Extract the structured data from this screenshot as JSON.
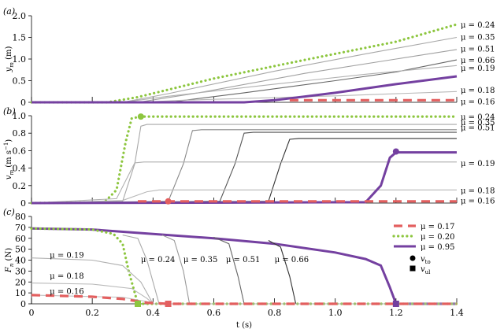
{
  "chart_data": [
    {
      "id": "a",
      "panel_label": "(a)",
      "type": "line",
      "ylabel_parts": [
        "y",
        "m",
        " (m)"
      ],
      "ylim": [
        0,
        2.0
      ],
      "yticks": [
        0,
        0.5,
        1.0,
        1.5,
        2.0
      ],
      "ytick_labels": [
        "0",
        "0.5",
        "1.0",
        "1.5",
        "2.0"
      ],
      "xlim": [
        0,
        1.4
      ],
      "xticks": [
        0,
        0.2,
        0.4,
        0.6,
        0.8,
        1.0,
        1.2,
        1.4
      ],
      "xtick_labels": [],
      "series": [
        {
          "name": "μ = 0.24",
          "style": "dotted",
          "color": "#8dc63f",
          "points": [
            [
              0,
              0
            ],
            [
              0.25,
              0
            ],
            [
              0.35,
              0.12
            ],
            [
              0.6,
              0.55
            ],
            [
              0.9,
              0.98
            ],
            [
              1.2,
              1.4
            ],
            [
              1.4,
              1.8
            ]
          ]
        },
        {
          "name": "μ = 0.35",
          "style": "thin",
          "color": "#a8a8a8",
          "points": [
            [
              0,
              0
            ],
            [
              0.3,
              0
            ],
            [
              0.45,
              0.2
            ],
            [
              0.8,
              0.72
            ],
            [
              1.1,
              1.12
            ],
            [
              1.4,
              1.5
            ]
          ]
        },
        {
          "name": "μ = 0.51",
          "style": "thin",
          "color": "#a0a0a0",
          "points": [
            [
              0,
              0
            ],
            [
              0.35,
              0
            ],
            [
              0.55,
              0.22
            ],
            [
              0.9,
              0.67
            ],
            [
              1.2,
              1.0
            ],
            [
              1.4,
              1.22
            ]
          ]
        },
        {
          "name": "μ = 0.66",
          "style": "thin",
          "color": "#666666",
          "points": [
            [
              0,
              0
            ],
            [
              0.45,
              0
            ],
            [
              0.7,
              0.22
            ],
            [
              1.0,
              0.5
            ],
            [
              1.2,
              0.7
            ],
            [
              1.4,
              0.98
            ]
          ]
        },
        {
          "name": "μ = 0.19",
          "style": "thin",
          "color": "#b0b0b0",
          "points": [
            [
              0,
              0
            ],
            [
              0.3,
              0
            ],
            [
              0.45,
              0.14
            ],
            [
              0.8,
              0.42
            ],
            [
              1.1,
              0.65
            ],
            [
              1.4,
              0.85
            ]
          ]
        },
        {
          "name": "μ = 0.18",
          "style": "thin",
          "color": "#b8b8b8",
          "points": [
            [
              0,
              0
            ],
            [
              0.35,
              0
            ],
            [
              0.5,
              0.05
            ],
            [
              1.0,
              0.15
            ],
            [
              1.4,
              0.25
            ]
          ]
        },
        {
          "name": "μ = 0.16",
          "style": "thick",
          "color": "#7440a0",
          "points": [
            [
              0,
              0
            ],
            [
              0.7,
              0
            ],
            [
              0.8,
              0.05
            ],
            [
              1.0,
              0.22
            ],
            [
              1.2,
              0.42
            ],
            [
              1.4,
              0.6
            ]
          ]
        },
        {
          "name": "",
          "style": "dashed",
          "color": "#e35f5f",
          "points": [
            [
              0.85,
              0.05
            ],
            [
              1.4,
              0.05
            ]
          ]
        }
      ],
      "right_labels": [
        {
          "text": "μ = 0.24",
          "y": 1.8
        },
        {
          "text": "μ = 0.35",
          "y": 1.52
        },
        {
          "text": "μ = 0.51",
          "y": 1.25
        },
        {
          "text": "μ = 0.66",
          "y": 0.98
        },
        {
          "text": "μ = 0.19",
          "y": 0.8
        },
        {
          "text": "μ = 0.18",
          "y": 0.29
        },
        {
          "text": "μ = 0.16",
          "y": 0.03
        }
      ]
    },
    {
      "id": "b",
      "panel_label": "(b)",
      "type": "line",
      "ylabel_parts": [
        "v",
        "m",
        " (m s",
        "−1",
        ")"
      ],
      "ylim": [
        0,
        1.0
      ],
      "yticks": [
        0,
        0.2,
        0.4,
        0.6,
        0.8,
        1.0
      ],
      "ytick_labels": [
        "0",
        "0.2",
        "0.4",
        "0.6",
        "0.8",
        "1.0"
      ],
      "xlim": [
        0,
        1.4
      ],
      "xticks": [
        0,
        0.2,
        0.4,
        0.6,
        0.8,
        1.0,
        1.2,
        1.4
      ],
      "xtick_labels": [],
      "series": [
        {
          "name": "μ = 0.24",
          "style": "dotted",
          "color": "#8dc63f",
          "points": [
            [
              0,
              0
            ],
            [
              0.24,
              0.01
            ],
            [
              0.28,
              0.15
            ],
            [
              0.31,
              0.7
            ],
            [
              0.33,
              0.97
            ],
            [
              0.36,
              0.99
            ],
            [
              1.4,
              0.99
            ]
          ]
        },
        {
          "name": "μ = 0.35",
          "style": "thin",
          "color": "#a8a8a8",
          "points": [
            [
              0,
              0
            ],
            [
              0.3,
              0.02
            ],
            [
              0.34,
              0.45
            ],
            [
              0.36,
              0.88
            ],
            [
              0.38,
              0.9
            ],
            [
              1.4,
              0.9
            ]
          ]
        },
        {
          "name": "μ = 0.51",
          "style": "thin",
          "color": "#888888",
          "points": [
            [
              0,
              0
            ],
            [
              0.45,
              0.02
            ],
            [
              0.5,
              0.45
            ],
            [
              0.53,
              0.83
            ],
            [
              0.56,
              0.84
            ],
            [
              1.4,
              0.84
            ]
          ]
        },
        {
          "name": "μ = 0.66",
          "style": "thin",
          "color": "#555555",
          "points": [
            [
              0,
              0
            ],
            [
              0.62,
              0.02
            ],
            [
              0.67,
              0.45
            ],
            [
              0.7,
              0.8
            ],
            [
              0.73,
              0.81
            ],
            [
              1.4,
              0.81
            ]
          ]
        },
        {
          "name": "μ = 0.66",
          "style": "thin",
          "color": "#333333",
          "points": [
            [
              0,
              0
            ],
            [
              0.78,
              0.02
            ],
            [
              0.82,
              0.45
            ],
            [
              0.85,
              0.73
            ],
            [
              0.88,
              0.74
            ],
            [
              1.4,
              0.74
            ]
          ]
        },
        {
          "name": "μ = 0.19",
          "style": "thin",
          "color": "#b0b0b0",
          "points": [
            [
              0,
              0
            ],
            [
              0.28,
              0.05
            ],
            [
              0.34,
              0.46
            ],
            [
              0.37,
              0.47
            ],
            [
              1.4,
              0.47
            ]
          ]
        },
        {
          "name": "μ = 0.18",
          "style": "thin",
          "color": "#b8b8b8",
          "points": [
            [
              0,
              0
            ],
            [
              0.3,
              0.03
            ],
            [
              0.38,
              0.13
            ],
            [
              0.42,
              0.15
            ],
            [
              1.4,
              0.15
            ]
          ]
        },
        {
          "name": "μ = 0.16",
          "style": "thick",
          "color": "#7440a0",
          "points": [
            [
              0,
              0
            ],
            [
              1.1,
              0.01
            ],
            [
              1.15,
              0.2
            ],
            [
              1.18,
              0.52
            ],
            [
              1.2,
              0.58
            ],
            [
              1.4,
              0.58
            ]
          ]
        },
        {
          "name": "",
          "style": "dashed",
          "color": "#e35f5f",
          "points": [
            [
              0.35,
              0.02
            ],
            [
              1.4,
              0.02
            ]
          ]
        }
      ],
      "markers": [
        {
          "shape": "circle",
          "color": "#8dc63f",
          "x": 0.36,
          "y": 0.99
        },
        {
          "shape": "circle",
          "color": "#7440a0",
          "x": 1.2,
          "y": 0.59
        },
        {
          "shape": "circle",
          "color": "#e35f5f",
          "x": 0.45,
          "y": 0.02
        }
      ],
      "right_labels": [
        {
          "text": "μ = 0.24",
          "y": 0.99
        },
        {
          "text": "μ = 0.35",
          "y": 0.93
        },
        {
          "text": "μ = 0.51",
          "y": 0.87
        },
        {
          "text": "μ = 0.19",
          "y": 0.46
        },
        {
          "text": "μ = 0.18",
          "y": 0.15
        },
        {
          "text": "μ = 0.16",
          "y": 0.03
        }
      ]
    },
    {
      "id": "c",
      "panel_label": "(c)",
      "type": "line",
      "ylabel_parts": [
        "F",
        "n",
        " (N)"
      ],
      "ylim": [
        0,
        80
      ],
      "yticks": [
        0,
        10,
        20,
        30,
        40,
        50,
        60,
        70,
        80
      ],
      "ytick_labels": [
        "0",
        "10",
        "20",
        "30",
        "40",
        "50",
        "60",
        "70",
        "80"
      ],
      "xlim": [
        0,
        1.4
      ],
      "xticks": [
        0,
        0.2,
        0.4,
        0.6,
        0.8,
        1.0,
        1.2,
        1.4
      ],
      "xtick_labels": [
        "0",
        "0.2",
        "0.4",
        "0.6",
        "0.8",
        "1.0",
        "1.2",
        "1.4"
      ],
      "xlabel": "t (s)",
      "series": [
        {
          "name": "μ = 0.95",
          "style": "thick",
          "color": "#7440a0",
          "points": [
            [
              0,
              69
            ],
            [
              0.2,
              68
            ],
            [
              0.4,
              64
            ],
            [
              0.6,
              60
            ],
            [
              0.8,
              55
            ],
            [
              1.0,
              47
            ],
            [
              1.1,
              41
            ],
            [
              1.15,
              35
            ],
            [
              1.18,
              15
            ],
            [
              1.2,
              0
            ],
            [
              1.4,
              0
            ]
          ]
        },
        {
          "name": "μ = 0.20",
          "style": "dotted",
          "color": "#8dc63f",
          "points": [
            [
              0,
              69
            ],
            [
              0.2,
              68
            ],
            [
              0.27,
              64
            ],
            [
              0.3,
              55
            ],
            [
              0.32,
              30
            ],
            [
              0.35,
              0
            ],
            [
              1.4,
              0
            ]
          ]
        },
        {
          "name": "μ = 0.24",
          "style": "thin",
          "color": "#a8a8a8",
          "points": [
            [
              0.3,
              63
            ],
            [
              0.35,
              60
            ],
            [
              0.38,
              40
            ],
            [
              0.42,
              0
            ]
          ]
        },
        {
          "name": "μ = 0.35",
          "style": "thin",
          "color": "#999999",
          "points": [
            [
              0.43,
              63
            ],
            [
              0.47,
              58
            ],
            [
              0.5,
              30
            ],
            [
              0.52,
              0
            ]
          ]
        },
        {
          "name": "μ = 0.51",
          "style": "thin",
          "color": "#666666",
          "points": [
            [
              0.6,
              61
            ],
            [
              0.65,
              55
            ],
            [
              0.68,
              25
            ],
            [
              0.7,
              0
            ]
          ]
        },
        {
          "name": "μ = 0.66",
          "style": "thin",
          "color": "#333333",
          "points": [
            [
              0.78,
              58
            ],
            [
              0.82,
              52
            ],
            [
              0.85,
              25
            ],
            [
              0.87,
              0
            ]
          ]
        },
        {
          "name": "μ = 0.19",
          "style": "thin",
          "color": "#b0b0b0",
          "points": [
            [
              0,
              42
            ],
            [
              0.2,
              40
            ],
            [
              0.3,
              35
            ],
            [
              0.36,
              20
            ],
            [
              0.4,
              0
            ],
            [
              1.4,
              0
            ]
          ]
        },
        {
          "name": "μ = 0.18",
          "style": "thin",
          "color": "#b8b8b8",
          "points": [
            [
              0,
              19
            ],
            [
              0.2,
              18
            ],
            [
              0.33,
              14
            ],
            [
              0.38,
              5
            ],
            [
              0.4,
              0
            ]
          ]
        },
        {
          "name": "μ = 0.16",
          "style": "thin",
          "color": "#c0c0c0",
          "points": [
            [
              0,
              8
            ],
            [
              0.3,
              6
            ],
            [
              0.38,
              2
            ],
            [
              0.4,
              0
            ]
          ]
        },
        {
          "name": "μ = 0.17",
          "style": "dashed",
          "color": "#e35f5f",
          "points": [
            [
              0,
              8
            ],
            [
              0.2,
              6.5
            ],
            [
              0.3,
              4.5
            ],
            [
              0.38,
              1
            ],
            [
              0.45,
              0
            ],
            [
              1.4,
              0
            ]
          ]
        }
      ],
      "markers": [
        {
          "shape": "square",
          "color": "#8dc63f",
          "x": 0.35,
          "y": 0
        },
        {
          "shape": "square",
          "color": "#e35f5f",
          "x": 0.45,
          "y": 0
        },
        {
          "shape": "square",
          "color": "#7440a0",
          "x": 1.2,
          "y": 0
        }
      ],
      "inline_labels": [
        {
          "text": "μ = 0.19",
          "x": 0.06,
          "y": 45
        },
        {
          "text": "μ = 0.18",
          "x": 0.06,
          "y": 26
        },
        {
          "text": "μ = 0.16",
          "x": 0.06,
          "y": 12
        },
        {
          "text": "μ = 0.24",
          "x": 0.36,
          "y": 41
        },
        {
          "text": "μ = 0.35",
          "x": 0.5,
          "y": 41
        },
        {
          "text": "μ = 0.51",
          "x": 0.64,
          "y": 41
        },
        {
          "text": "μ = 0.66",
          "x": 0.8,
          "y": 41
        }
      ],
      "legend": {
        "placement": "top-right",
        "entries": [
          {
            "text": "μ = 0.17",
            "style": "dashed",
            "color": "#e35f5f"
          },
          {
            "text": "μ = 0.20",
            "style": "dotted",
            "color": "#8dc63f"
          },
          {
            "text": "μ = 0.95",
            "style": "thick",
            "color": "#7440a0"
          }
        ],
        "markers": [
          {
            "shape": "circle",
            "parts": [
              "v",
              "to"
            ]
          },
          {
            "shape": "square",
            "parts": [
              "v",
              "ul"
            ]
          }
        ]
      }
    }
  ]
}
